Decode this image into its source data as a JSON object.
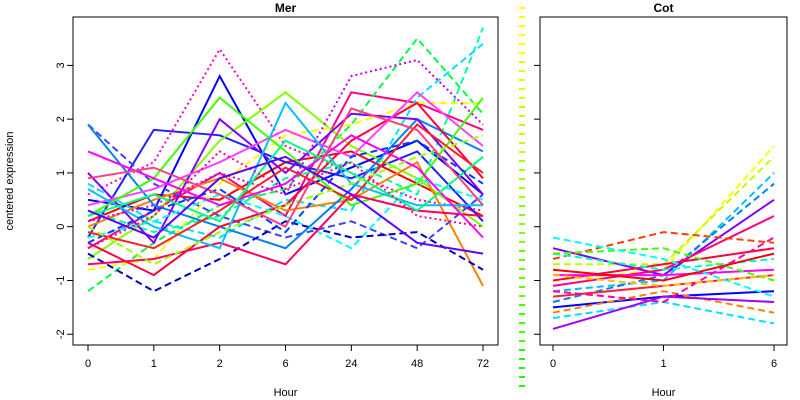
{
  "chart_data": [
    {
      "type": "line",
      "title": "Mer",
      "xlabel": "Hour",
      "ylabel": "centered expression",
      "categories": [
        "0",
        "1",
        "2",
        "6",
        "24",
        "48",
        "72"
      ],
      "ylim": [
        -2.2,
        3.9
      ],
      "yticks": [
        "-2",
        "-1",
        "0",
        "1",
        "2",
        "3"
      ],
      "grid": false,
      "series": [
        {
          "color": "#ff0000",
          "dash": "solid",
          "values": [
            0.1,
            0.6,
            0.5,
            1.2,
            1.4,
            0.8,
            0.2
          ]
        },
        {
          "color": "#ff0080",
          "dash": "solid",
          "values": [
            -0.4,
            0.3,
            1.0,
            0.2,
            2.5,
            2.3,
            1.8
          ]
        },
        {
          "color": "#ff00c0",
          "dash": "dotted",
          "values": [
            0.6,
            1.2,
            3.3,
            1.5,
            1.0,
            0.5,
            0.3
          ]
        },
        {
          "color": "#2020ff",
          "dash": "solid",
          "values": [
            -0.2,
            1.8,
            1.7,
            1.2,
            0.9,
            1.4,
            0.1
          ]
        },
        {
          "color": "#0000ff",
          "dash": "solid",
          "values": [
            0.5,
            0.3,
            2.8,
            0.6,
            1.1,
            1.6,
            0.6
          ]
        },
        {
          "color": "#00ff40",
          "dash": "dashed",
          "values": [
            -1.2,
            -0.3,
            0.4,
            0.7,
            1.9,
            3.5,
            2.1
          ]
        },
        {
          "color": "#00ffa0",
          "dash": "dashed",
          "values": [
            0.3,
            -0.1,
            0.2,
            0.9,
            1.2,
            0.6,
            3.7
          ]
        },
        {
          "color": "#00e0ff",
          "dash": "dashed",
          "values": [
            0.8,
            0.1,
            -0.2,
            0.5,
            0.3,
            2.4,
            3.4
          ]
        },
        {
          "color": "#80ff00",
          "dash": "solid",
          "values": [
            -0.6,
            0.2,
            1.6,
            2.5,
            1.5,
            0.9,
            0.0
          ]
        },
        {
          "color": "#ffff00",
          "dash": "dashed",
          "values": [
            -0.8,
            -0.6,
            0.8,
            1.7,
            1.9,
            2.3,
            2.3
          ]
        },
        {
          "color": "#ff8000",
          "dash": "solid",
          "values": [
            0.0,
            0.5,
            0.9,
            0.3,
            0.5,
            1.2,
            -1.1
          ]
        },
        {
          "color": "#4040ff",
          "dash": "dashed",
          "values": [
            1.9,
            0.8,
            0.2,
            -0.2,
            0.1,
            -0.4,
            0.6
          ]
        },
        {
          "color": "#0080ff",
          "dash": "solid",
          "values": [
            1.9,
            0.4,
            0.0,
            -0.4,
            0.7,
            2.0,
            1.4
          ]
        },
        {
          "color": "#8000ff",
          "dash": "solid",
          "values": [
            1.0,
            -0.3,
            2.0,
            1.0,
            2.1,
            2.0,
            0.6
          ]
        },
        {
          "color": "#ff0040",
          "dash": "solid",
          "values": [
            -0.3,
            -0.9,
            0.0,
            0.4,
            1.6,
            2.3,
            0.9
          ]
        },
        {
          "color": "#ff40ff",
          "dash": "solid",
          "values": [
            0.4,
            0.7,
            1.2,
            1.8,
            1.3,
            2.5,
            1.5
          ]
        },
        {
          "color": "#00ffff",
          "dash": "dashed",
          "values": [
            -0.2,
            0.1,
            0.6,
            0.2,
            -0.4,
            0.9,
            0.5
          ]
        },
        {
          "color": "#40ff00",
          "dash": "solid",
          "values": [
            0.2,
            0.9,
            2.4,
            1.4,
            0.4,
            0.8,
            2.4
          ]
        },
        {
          "color": "#0000c0",
          "dash": "dashed",
          "values": [
            -0.5,
            -1.2,
            -0.6,
            0.1,
            -0.2,
            -0.1,
            -0.8
          ]
        },
        {
          "color": "#ff0060",
          "dash": "solid",
          "values": [
            -0.7,
            -0.6,
            -0.3,
            -0.7,
            0.6,
            0.3,
            0.2
          ]
        },
        {
          "color": "#c000ff",
          "dash": "dotted",
          "values": [
            0.1,
            0.4,
            1.0,
            0.6,
            2.8,
            3.1,
            1.9
          ]
        },
        {
          "color": "#00c0ff",
          "dash": "solid",
          "values": [
            0.7,
            0.0,
            -0.4,
            2.3,
            0.8,
            0.4,
            0.4
          ]
        },
        {
          "color": "#ff00ff",
          "dash": "solid",
          "values": [
            1.4,
            0.9,
            0.4,
            0.8,
            1.7,
            1.1,
            -0.2
          ]
        },
        {
          "color": "#ff2020",
          "dash": "solid",
          "values": [
            -0.1,
            -0.4,
            0.3,
            1.1,
            0.5,
            1.9,
            1.0
          ]
        },
        {
          "color": "#00ff80",
          "dash": "solid",
          "values": [
            0.2,
            0.6,
            0.1,
            1.6,
            1.0,
            0.3,
            1.3
          ]
        },
        {
          "color": "#0040ff",
          "dash": "dashed",
          "values": [
            -0.3,
            0.3,
            0.7,
            -0.1,
            1.3,
            1.6,
            0.8
          ]
        },
        {
          "color": "#a0ff00",
          "dash": "dashed",
          "values": [
            0.0,
            -0.7,
            -0.1,
            0.4,
            0.8,
            1.3,
            1.7
          ]
        },
        {
          "color": "#ff4080",
          "dash": "solid",
          "values": [
            0.9,
            1.1,
            0.6,
            0.0,
            2.2,
            1.8,
            0.4
          ]
        },
        {
          "color": "#ff00a0",
          "dash": "dotted",
          "values": [
            -0.4,
            0.2,
            1.4,
            0.7,
            1.2,
            0.2,
            0.0
          ]
        },
        {
          "color": "#6000ff",
          "dash": "solid",
          "values": [
            0.3,
            -0.2,
            0.9,
            1.3,
            0.6,
            -0.3,
            -0.5
          ]
        }
      ]
    },
    {
      "type": "line",
      "title": "Cot",
      "xlabel": "Hour",
      "ylabel": "",
      "categories": [
        "0",
        "1",
        "6"
      ],
      "ylim": [
        -2.2,
        3.9
      ],
      "grid": false,
      "series": [
        {
          "color": "#ffff00",
          "dash": "dashed",
          "values": [
            -1.0,
            -0.8,
            1.5
          ]
        },
        {
          "color": "#c0ff00",
          "dash": "dashed",
          "values": [
            -0.7,
            -0.7,
            1.3
          ]
        },
        {
          "color": "#00c0ff",
          "dash": "dashed",
          "values": [
            -1.2,
            -1.0,
            1.0
          ]
        },
        {
          "color": "#0080ff",
          "dash": "dashed",
          "values": [
            -1.4,
            -0.9,
            0.8
          ]
        },
        {
          "color": "#8000ff",
          "dash": "solid",
          "values": [
            -0.4,
            -0.9,
            0.5
          ]
        },
        {
          "color": "#ff0080",
          "dash": "solid",
          "values": [
            -1.1,
            -0.8,
            0.2
          ]
        },
        {
          "color": "#ff4000",
          "dash": "dashed",
          "values": [
            -0.6,
            -0.1,
            -0.3
          ]
        },
        {
          "color": "#ff0040",
          "dash": "solid",
          "values": [
            -1.0,
            -0.7,
            -0.4
          ]
        },
        {
          "color": "#00ffc0",
          "dash": "dashed",
          "values": [
            -0.5,
            -0.8,
            -0.6
          ]
        },
        {
          "color": "#ff00ff",
          "dash": "solid",
          "values": [
            -0.9,
            -0.9,
            -0.8
          ]
        },
        {
          "color": "#ff2040",
          "dash": "solid",
          "values": [
            -1.3,
            -1.1,
            -0.9
          ]
        },
        {
          "color": "#40ff00",
          "dash": "dashed",
          "values": [
            -0.5,
            -0.4,
            -1.0
          ]
        },
        {
          "color": "#0000ff",
          "dash": "solid",
          "values": [
            -1.5,
            -1.3,
            -1.2
          ]
        },
        {
          "color": "#ff8000",
          "dash": "dashed",
          "values": [
            -1.6,
            -1.2,
            -1.6
          ]
        },
        {
          "color": "#00e0ff",
          "dash": "dashed",
          "values": [
            -1.7,
            -1.4,
            -1.8
          ]
        },
        {
          "color": "#a000ff",
          "dash": "solid",
          "values": [
            -1.9,
            -1.3,
            -1.4
          ]
        },
        {
          "color": "#ff0000",
          "dash": "solid",
          "values": [
            -0.8,
            -1.0,
            -0.5
          ]
        },
        {
          "color": "#00ffff",
          "dash": "dashed",
          "values": [
            -0.2,
            -0.6,
            -1.3
          ]
        },
        {
          "color": "#ff00a0",
          "dash": "dashed",
          "values": [
            -1.2,
            -1.4,
            -0.2
          ]
        },
        {
          "color": "#ffc000",
          "dash": "dashed",
          "values": [
            -0.9,
            -1.1,
            -0.9
          ]
        }
      ]
    }
  ],
  "legend_color_key": [
    "#ffff00",
    "#e0ff00",
    "#c0ff00",
    "#a0ff00",
    "#80ff00",
    "#60ff00",
    "#40ff00",
    "#20ff00"
  ]
}
